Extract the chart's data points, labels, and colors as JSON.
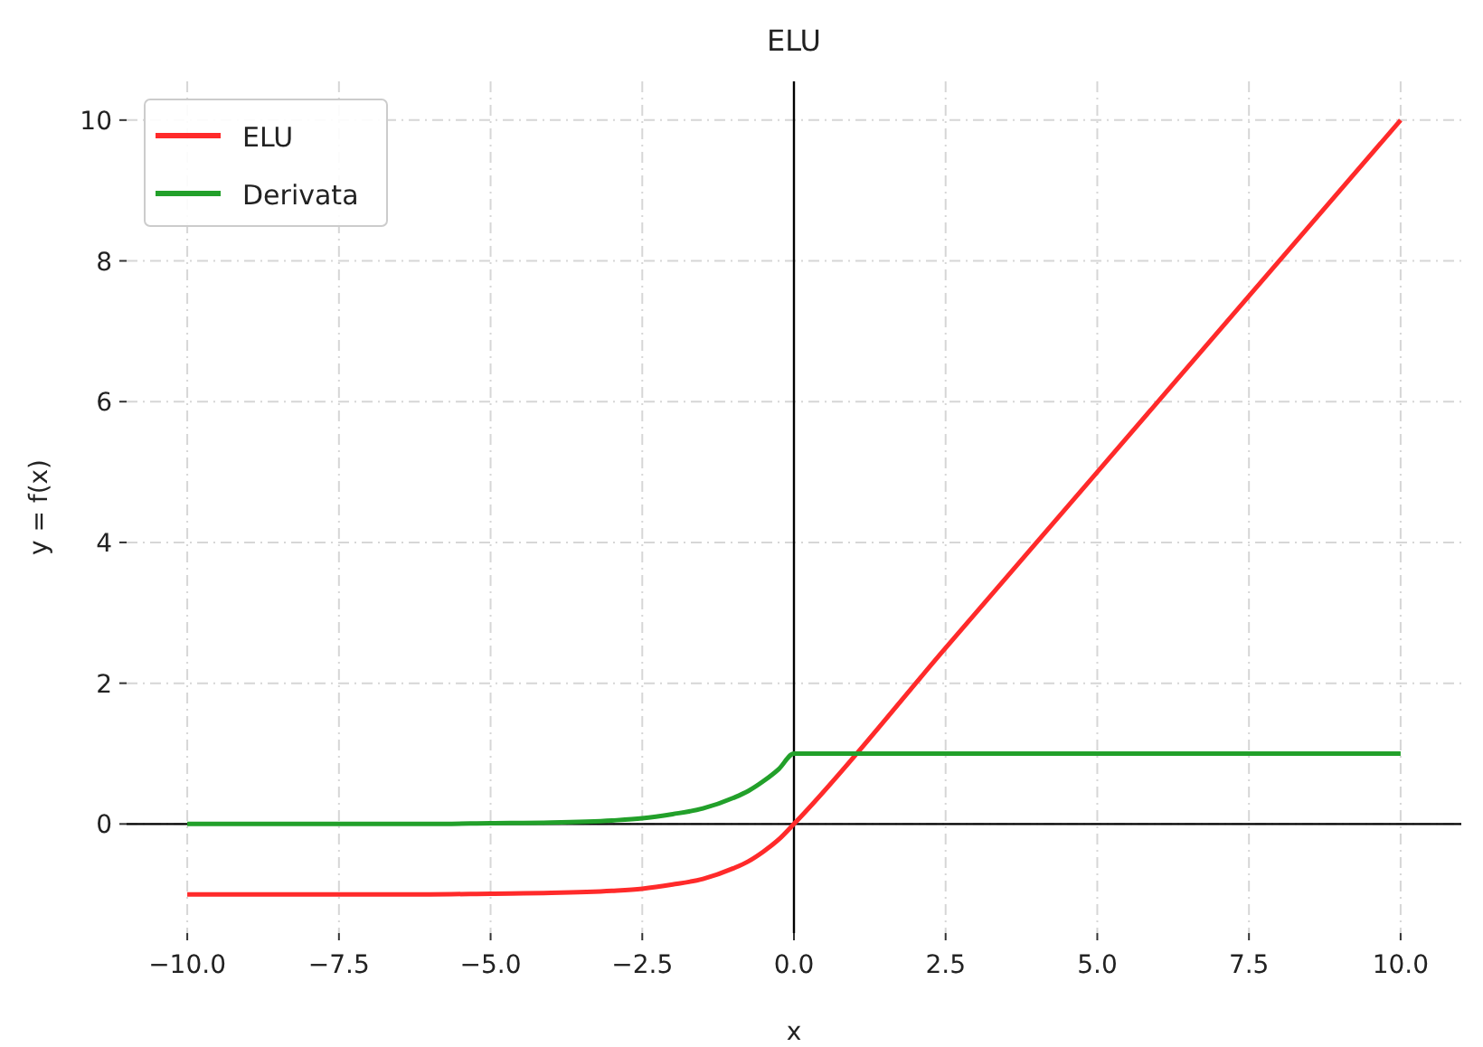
{
  "chart_data": {
    "type": "line",
    "title": "ELU",
    "xlabel": "x",
    "ylabel": "y = f(x)",
    "xlim": [
      -11,
      11
    ],
    "ylim": [
      -1.55,
      10.55
    ],
    "xticks": [
      {
        "value": -10,
        "label": "−10.0"
      },
      {
        "value": -7.5,
        "label": "−7.5"
      },
      {
        "value": -5,
        "label": "−5.0"
      },
      {
        "value": -2.5,
        "label": "−2.5"
      },
      {
        "value": 0,
        "label": "0.0"
      },
      {
        "value": 2.5,
        "label": "2.5"
      },
      {
        "value": 5,
        "label": "5.0"
      },
      {
        "value": 7.5,
        "label": "7.5"
      },
      {
        "value": 10,
        "label": "10.0"
      }
    ],
    "yticks": [
      0,
      2,
      4,
      6,
      8,
      10
    ],
    "grid": true,
    "legend": "top left",
    "line_style": "solid",
    "marker": "none",
    "series": [
      {
        "name": "ELU",
        "color": "#ff2a2a",
        "x": [
          -10,
          -8,
          -6,
          -5,
          -4,
          -3,
          -2.5,
          -2,
          -1.5,
          -1,
          -0.75,
          -0.5,
          -0.25,
          0,
          2.5,
          5,
          7.5,
          10
        ],
        "values": [
          -1,
          -1,
          -1,
          -0.99,
          -0.98,
          -0.95,
          -0.92,
          -0.86,
          -0.78,
          -0.63,
          -0.53,
          -0.39,
          -0.22,
          0,
          2.5,
          5,
          7.5,
          10
        ]
      },
      {
        "name": "Derivata",
        "color": "#22a02a",
        "x": [
          -10,
          -8,
          -6,
          -5,
          -4,
          -3,
          -2.5,
          -2,
          -1.5,
          -1,
          -0.75,
          -0.5,
          -0.25,
          0,
          2.5,
          5,
          7.5,
          10
        ],
        "values": [
          0,
          0,
          0,
          0.01,
          0.02,
          0.05,
          0.08,
          0.14,
          0.22,
          0.37,
          0.47,
          0.61,
          0.78,
          1,
          1,
          1,
          1,
          1
        ]
      }
    ]
  }
}
